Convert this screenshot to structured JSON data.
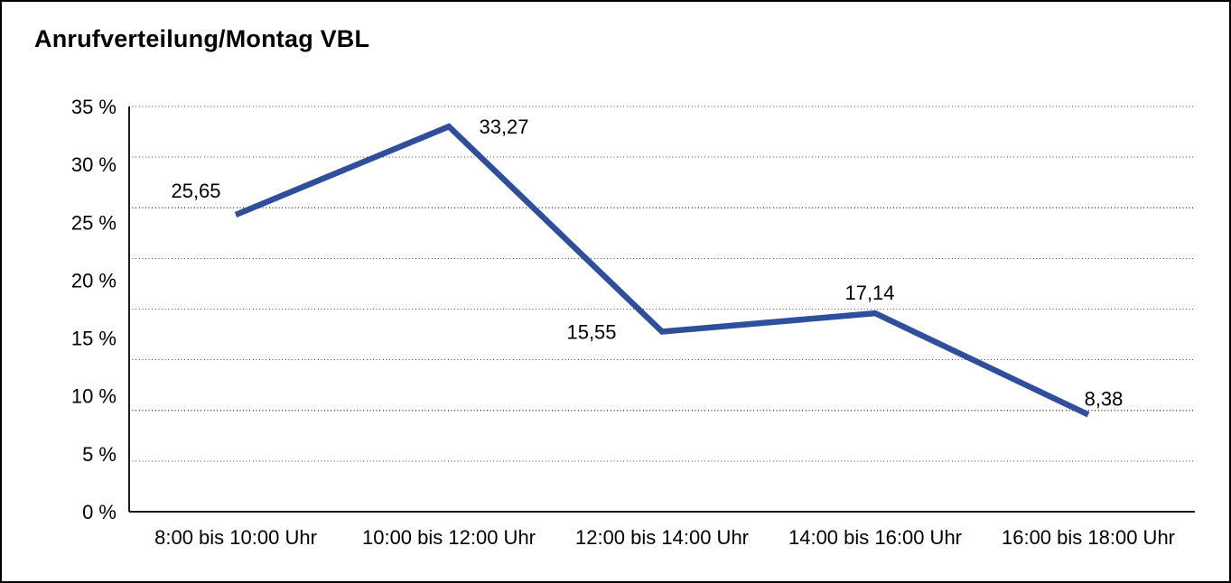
{
  "window": {
    "background_color": "#ffffff",
    "border_color": "#000000"
  },
  "chart_data": {
    "type": "line",
    "title": "Anrufverteilung/Montag VBL",
    "categories": [
      "8:00 bis 10:00 Uhr",
      "10:00 bis 12:00 Uhr",
      "12:00 bis 14:00 Uhr",
      "14:00 bis 16:00 Uhr",
      "16:00 bis 18:00 Uhr"
    ],
    "values": [
      25.65,
      33.27,
      15.55,
      17.14,
      8.38
    ],
    "point_labels": [
      "25,65",
      "33,27",
      "15,55",
      "17,14",
      "8,38"
    ],
    "xlabel": "",
    "ylabel": "",
    "ylim": [
      0,
      35
    ],
    "ytick_step": 5,
    "ytick_labels": [
      "0 %",
      "5 %",
      "10 %",
      "15 %",
      "20 %",
      "25 %",
      "30 %",
      "35 %"
    ],
    "grid": {
      "visible": true,
      "style": "dotted",
      "divisions": 8
    },
    "legend": "none",
    "line_color": "#2F4E9C",
    "axis_color": "#1a1a1a",
    "grid_color": "#4a4a4a",
    "text_color": "#000000"
  }
}
